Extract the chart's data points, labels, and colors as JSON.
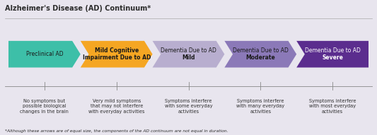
{
  "title": "Alzheimer's Disease (AD) Continuum*",
  "footnote": "*Although these arrows are of equal size, the components of the AD continuum are not equal in duration.",
  "background_color": "#e8e5ee",
  "title_color": "#2d2d2d",
  "segments": [
    {
      "label": "Preclinical AD",
      "color": "#3dbfa8",
      "text_color": "#1a1a1a",
      "bold": false,
      "bold_word": "",
      "description": "No symptoms but\npossible biological\nchanges in the brain"
    },
    {
      "label": "Mild Cognitive\nImpairment Due to AD",
      "color": "#f5a623",
      "text_color": "#1a1a1a",
      "bold": true,
      "bold_word": "",
      "description": "Very mild symptoms\nthat may not interfere\nwith everyday activities"
    },
    {
      "label": "Dementia Due to AD\nMild",
      "color": "#b8aecf",
      "text_color": "#1a1a1a",
      "bold": false,
      "bold_word": "Mild",
      "description": "Symptoms interfere\nwith some everyday\nactivities"
    },
    {
      "label": "Dementia Due to AD\nModerate",
      "color": "#8b79b8",
      "text_color": "#1a1a1a",
      "bold": false,
      "bold_word": "Moderate",
      "description": "Symptoms interfere\nwith many everyday\nactivities"
    },
    {
      "label": "Dementia Due to AD\nSevere",
      "color": "#5b2d8e",
      "text_color": "#ffffff",
      "bold": false,
      "bold_word": "Severe",
      "description": "Symptoms interfere\nwith most everyday\nactivities"
    }
  ],
  "figsize": [
    5.33,
    1.91
  ],
  "dpi": 100
}
